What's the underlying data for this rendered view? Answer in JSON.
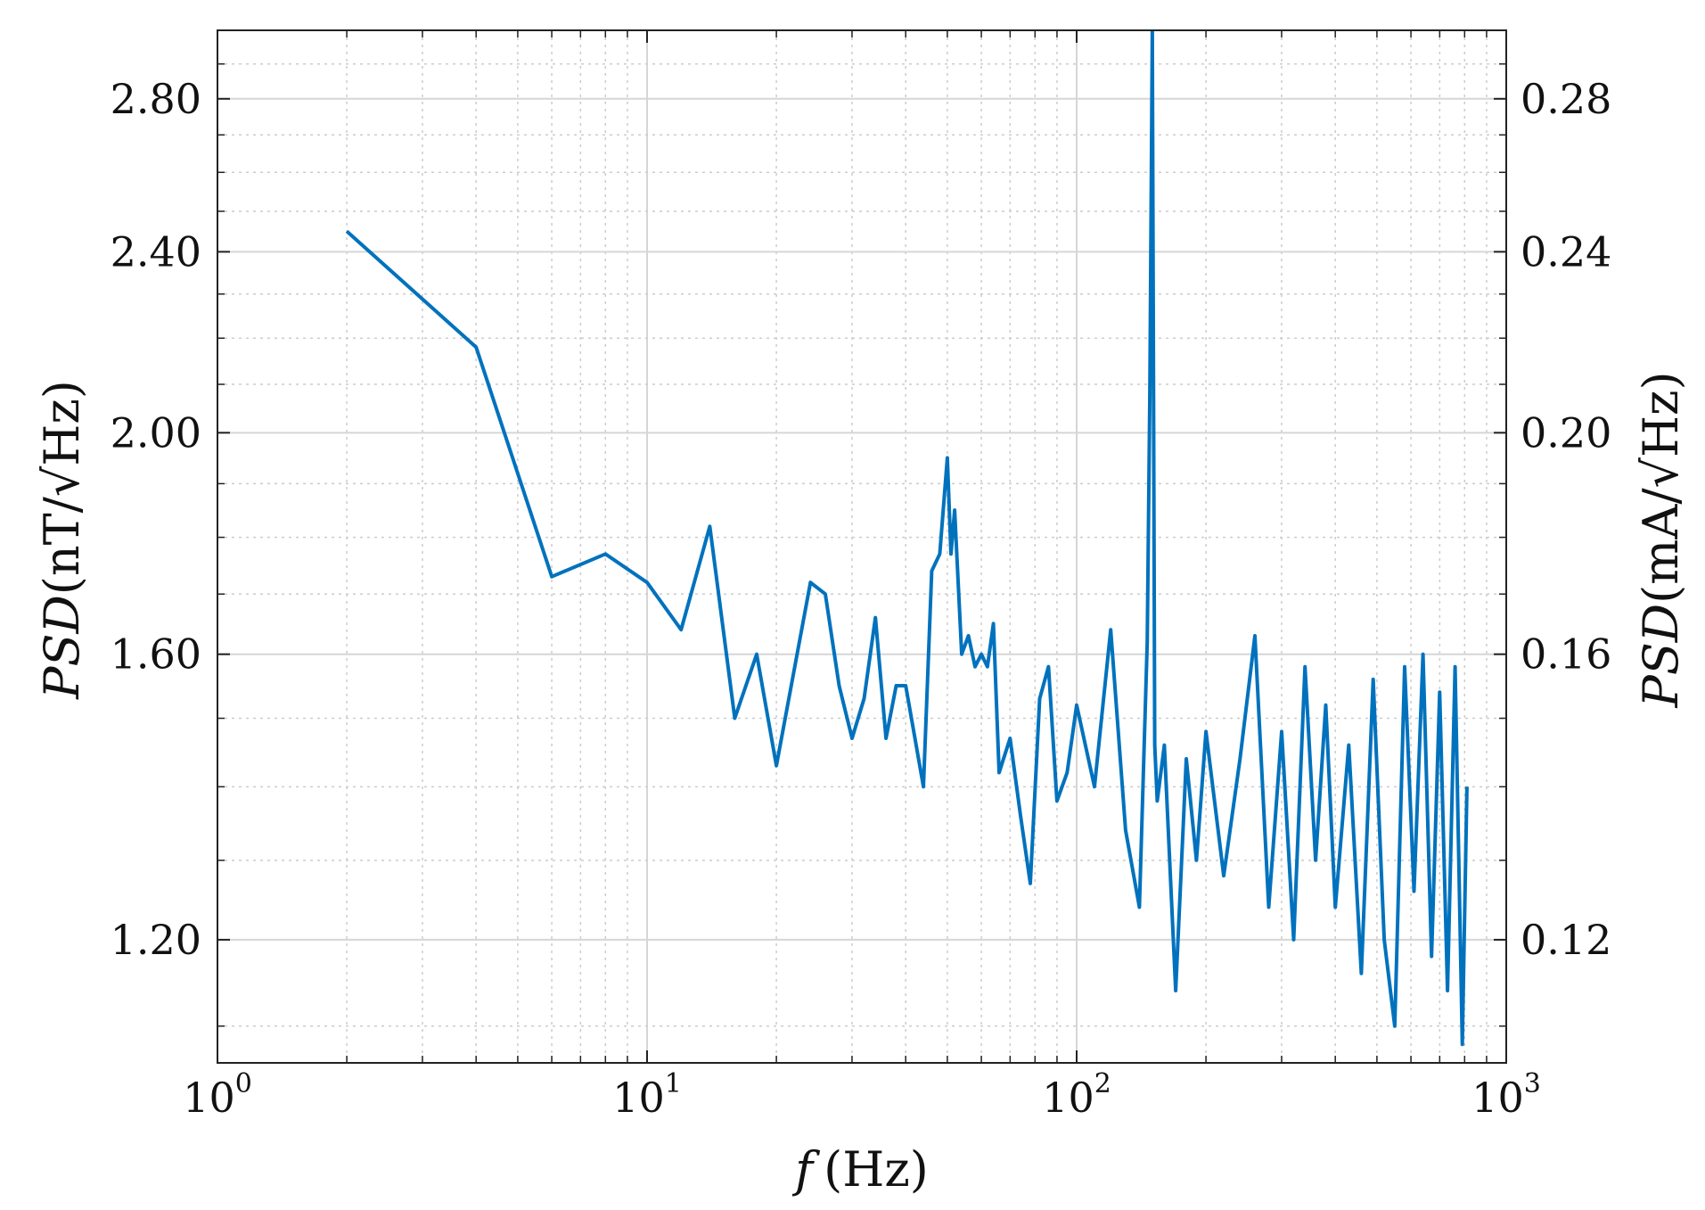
{
  "chart_data": {
    "type": "line",
    "title": "",
    "xscale": "log",
    "yscale": "log",
    "xlim": [
      1,
      1000
    ],
    "ylim": [
      1.06,
      3.0
    ],
    "y2lim": [
      0.106,
      0.3
    ],
    "grid": true,
    "line_color": "#0072BD",
    "xlabel": {
      "italic": "f",
      "unit": "(Hz)"
    },
    "ylabel": {
      "italic": "PSD",
      "unit": "(nT/√Hz)"
    },
    "y2label": {
      "italic": "PSD",
      "unit": "(mA/√Hz)"
    },
    "x_ticks": [
      {
        "base": "10",
        "exp": "0"
      },
      {
        "base": "10",
        "exp": "1"
      },
      {
        "base": "10",
        "exp": "2"
      },
      {
        "base": "10",
        "exp": "3"
      }
    ],
    "y_ticks": [
      "1.20",
      "1.60",
      "2.00",
      "2.40",
      "2.80"
    ],
    "y2_ticks": [
      "0.12",
      "0.16",
      "0.20",
      "0.24",
      "0.28"
    ],
    "series": [
      {
        "x": [
          2,
          4,
          6,
          8,
          10,
          12,
          14,
          16,
          18,
          20,
          24,
          26,
          28,
          30,
          32,
          34,
          36,
          38,
          40,
          44,
          46,
          48,
          50,
          51,
          52,
          54,
          56,
          58,
          60,
          62,
          64,
          66,
          70,
          74,
          78,
          82,
          86,
          90,
          95,
          100,
          110,
          120,
          130,
          140,
          146,
          148,
          150,
          152,
          154,
          160,
          170,
          180,
          190,
          200,
          220,
          240,
          260,
          280,
          300,
          320,
          340,
          360,
          380,
          400,
          430,
          460,
          490,
          520,
          550,
          580,
          610,
          640,
          670,
          700,
          730,
          760,
          790,
          810
        ],
        "y": [
          2.45,
          2.18,
          1.73,
          1.77,
          1.72,
          1.64,
          1.82,
          1.5,
          1.6,
          1.43,
          1.72,
          1.7,
          1.55,
          1.47,
          1.53,
          1.66,
          1.47,
          1.55,
          1.55,
          1.4,
          1.74,
          1.77,
          1.95,
          1.77,
          1.85,
          1.6,
          1.63,
          1.58,
          1.6,
          1.58,
          1.65,
          1.42,
          1.47,
          1.36,
          1.27,
          1.53,
          1.58,
          1.38,
          1.42,
          1.52,
          1.4,
          1.64,
          1.34,
          1.24,
          1.62,
          2.08,
          3.0,
          1.46,
          1.38,
          1.46,
          1.14,
          1.44,
          1.3,
          1.48,
          1.28,
          1.44,
          1.63,
          1.24,
          1.48,
          1.2,
          1.58,
          1.3,
          1.52,
          1.24,
          1.46,
          1.16,
          1.56,
          1.2,
          1.1,
          1.58,
          1.26,
          1.6,
          1.18,
          1.54,
          1.14,
          1.58,
          1.08,
          1.4
        ]
      }
    ]
  }
}
